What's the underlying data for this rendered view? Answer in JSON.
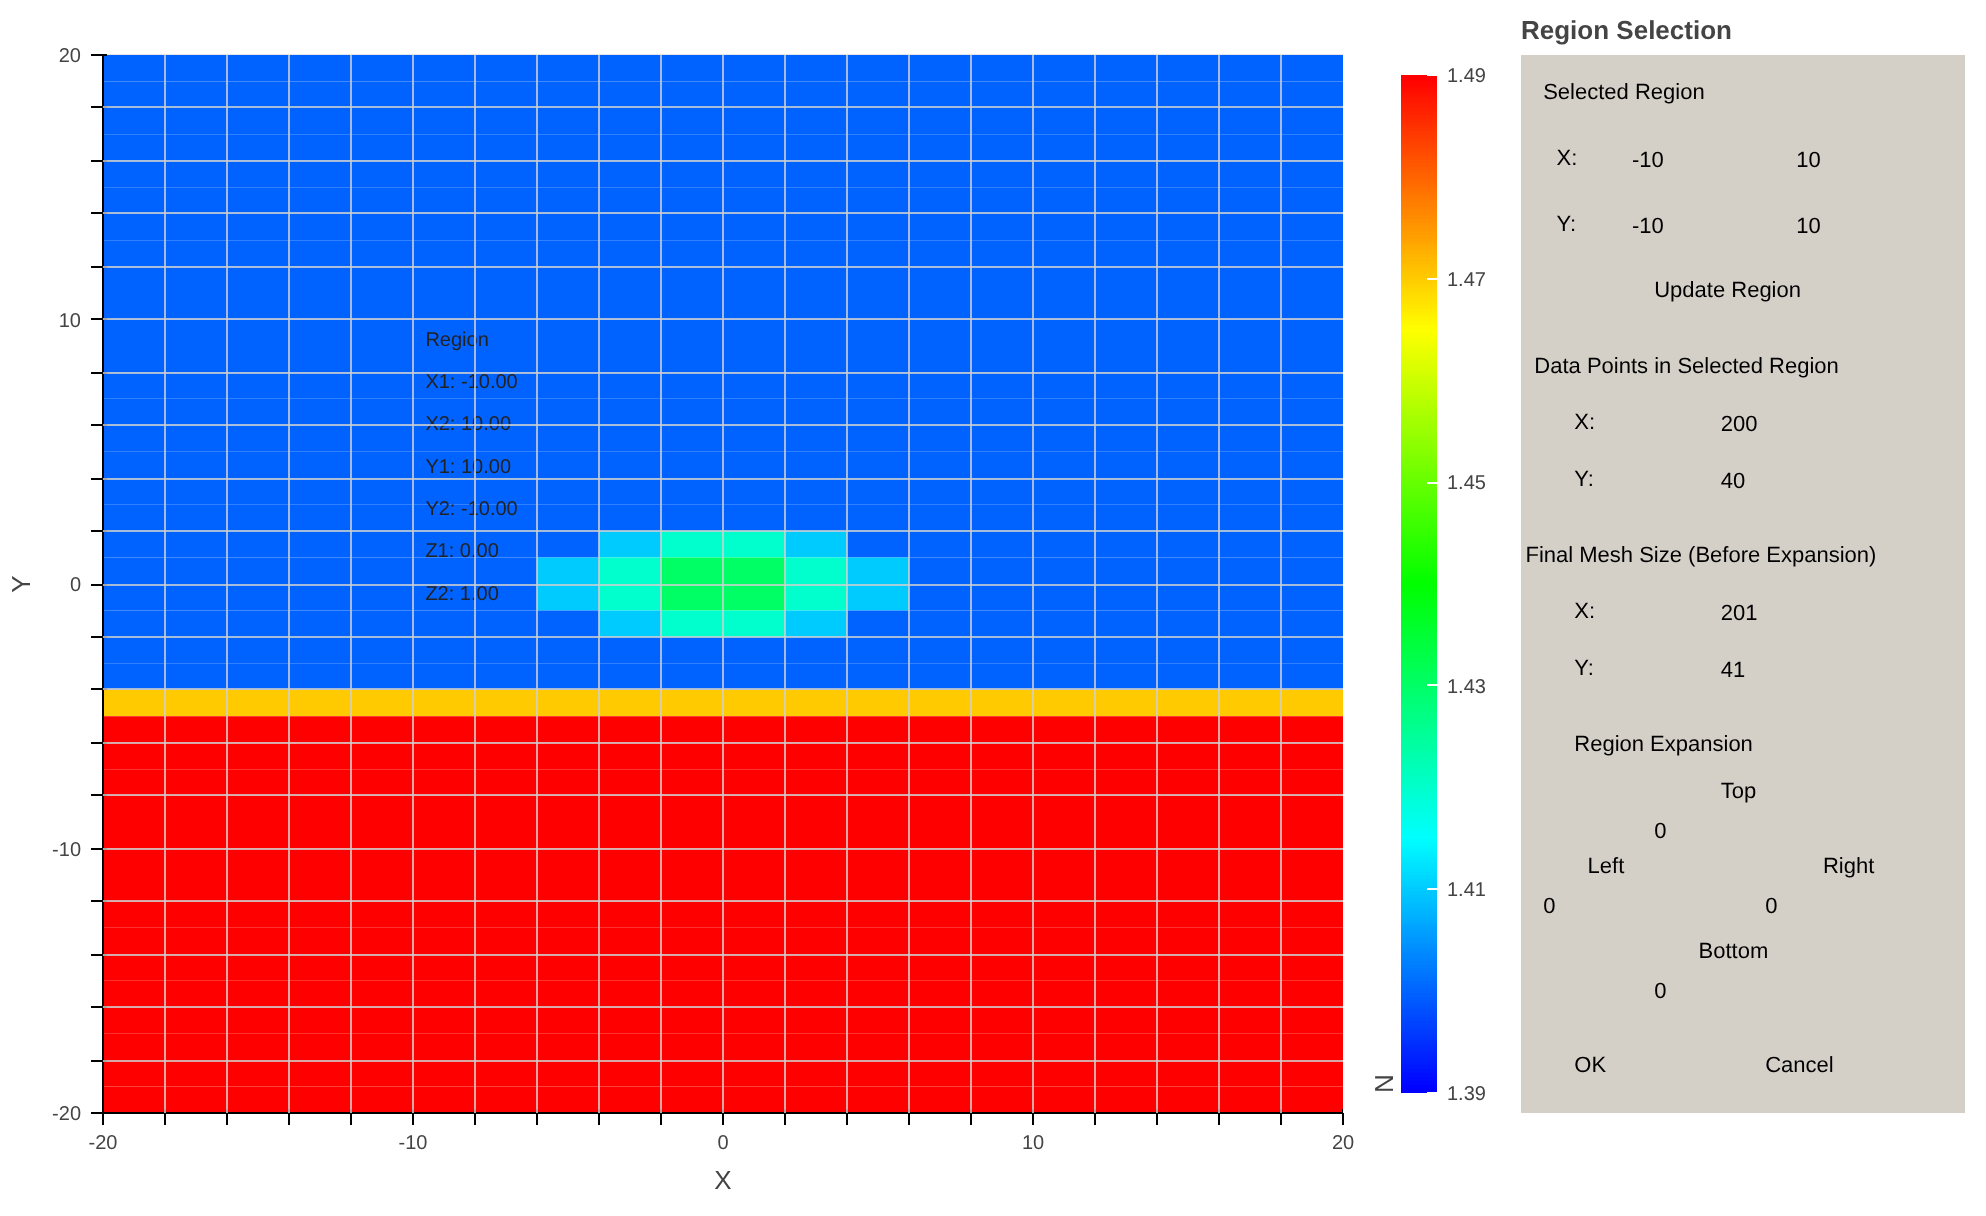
{
  "chart_data": [
    {
      "type": "heatmap",
      "title": "Region Selection",
      "xlabel": "X",
      "ylabel": "Y",
      "clabel": "N",
      "x": [
        -19,
        -17,
        -15,
        -13,
        -11,
        -9,
        -7,
        -5,
        -3,
        -1,
        1,
        3,
        5,
        7,
        9,
        11,
        13,
        15,
        17,
        19
      ],
      "y": [
        19.5,
        18.5,
        17.5,
        16.5,
        15.5,
        14.5,
        13.5,
        12.5,
        11.5,
        10.5,
        9.5,
        8.5,
        7.5,
        6.5,
        5.5,
        4.5,
        3.5,
        2.5,
        1.5,
        0.5,
        -0.5,
        -1.5,
        -2.5,
        -3.5,
        -4.5,
        -5.5,
        -6.5,
        -7.5,
        -8.5,
        -9.5,
        -10.5,
        -11.5,
        -12.5,
        -13.5,
        -14.5,
        -15.5,
        -16.5,
        -17.5,
        -18.5,
        -19.5
      ],
      "cells": [
        [
          1.4,
          1.4,
          1.4,
          1.4,
          1.4,
          1.4,
          1.4,
          1.4,
          1.4,
          1.4,
          1.4,
          1.4,
          1.4,
          1.4,
          1.4,
          1.4,
          1.4,
          1.4,
          1.4,
          1.4
        ],
        [
          1.4,
          1.4,
          1.4,
          1.4,
          1.4,
          1.4,
          1.4,
          1.4,
          1.4,
          1.4,
          1.4,
          1.4,
          1.4,
          1.4,
          1.4,
          1.4,
          1.4,
          1.4,
          1.4,
          1.4
        ],
        [
          1.4,
          1.4,
          1.4,
          1.4,
          1.4,
          1.4,
          1.4,
          1.4,
          1.4,
          1.4,
          1.4,
          1.4,
          1.4,
          1.4,
          1.4,
          1.4,
          1.4,
          1.4,
          1.4,
          1.4
        ],
        [
          1.4,
          1.4,
          1.4,
          1.4,
          1.4,
          1.4,
          1.4,
          1.4,
          1.4,
          1.4,
          1.4,
          1.4,
          1.4,
          1.4,
          1.4,
          1.4,
          1.4,
          1.4,
          1.4,
          1.4
        ],
        [
          1.4,
          1.4,
          1.4,
          1.4,
          1.4,
          1.4,
          1.4,
          1.4,
          1.4,
          1.4,
          1.4,
          1.4,
          1.4,
          1.4,
          1.4,
          1.4,
          1.4,
          1.4,
          1.4,
          1.4
        ],
        [
          1.4,
          1.4,
          1.4,
          1.4,
          1.4,
          1.4,
          1.4,
          1.4,
          1.4,
          1.4,
          1.4,
          1.4,
          1.4,
          1.4,
          1.4,
          1.4,
          1.4,
          1.4,
          1.4,
          1.4
        ],
        [
          1.4,
          1.4,
          1.4,
          1.4,
          1.4,
          1.4,
          1.4,
          1.4,
          1.4,
          1.4,
          1.4,
          1.4,
          1.4,
          1.4,
          1.4,
          1.4,
          1.4,
          1.4,
          1.4,
          1.4
        ],
        [
          1.4,
          1.4,
          1.4,
          1.4,
          1.4,
          1.4,
          1.4,
          1.4,
          1.4,
          1.4,
          1.4,
          1.4,
          1.4,
          1.4,
          1.4,
          1.4,
          1.4,
          1.4,
          1.4,
          1.4
        ],
        [
          1.4,
          1.4,
          1.4,
          1.4,
          1.4,
          1.4,
          1.4,
          1.4,
          1.4,
          1.4,
          1.4,
          1.4,
          1.4,
          1.4,
          1.4,
          1.4,
          1.4,
          1.4,
          1.4,
          1.4
        ],
        [
          1.4,
          1.4,
          1.4,
          1.4,
          1.4,
          1.4,
          1.4,
          1.4,
          1.4,
          1.4,
          1.4,
          1.4,
          1.4,
          1.4,
          1.4,
          1.4,
          1.4,
          1.4,
          1.4,
          1.4
        ],
        [
          1.4,
          1.4,
          1.4,
          1.4,
          1.4,
          1.4,
          1.4,
          1.4,
          1.4,
          1.4,
          1.4,
          1.4,
          1.4,
          1.4,
          1.4,
          1.4,
          1.4,
          1.4,
          1.4,
          1.4
        ],
        [
          1.4,
          1.4,
          1.4,
          1.4,
          1.4,
          1.4,
          1.4,
          1.4,
          1.4,
          1.4,
          1.4,
          1.4,
          1.4,
          1.4,
          1.4,
          1.4,
          1.4,
          1.4,
          1.4,
          1.4
        ],
        [
          1.4,
          1.4,
          1.4,
          1.4,
          1.4,
          1.4,
          1.4,
          1.4,
          1.4,
          1.4,
          1.4,
          1.4,
          1.4,
          1.4,
          1.4,
          1.4,
          1.4,
          1.4,
          1.4,
          1.4
        ],
        [
          1.4,
          1.4,
          1.4,
          1.4,
          1.4,
          1.4,
          1.4,
          1.4,
          1.4,
          1.4,
          1.4,
          1.4,
          1.4,
          1.4,
          1.4,
          1.4,
          1.4,
          1.4,
          1.4,
          1.4
        ],
        [
          1.4,
          1.4,
          1.4,
          1.4,
          1.4,
          1.4,
          1.4,
          1.4,
          1.4,
          1.4,
          1.4,
          1.4,
          1.4,
          1.4,
          1.4,
          1.4,
          1.4,
          1.4,
          1.4,
          1.4
        ],
        [
          1.4,
          1.4,
          1.4,
          1.4,
          1.4,
          1.4,
          1.4,
          1.4,
          1.4,
          1.4,
          1.4,
          1.4,
          1.4,
          1.4,
          1.4,
          1.4,
          1.4,
          1.4,
          1.4,
          1.4
        ],
        [
          1.4,
          1.4,
          1.4,
          1.4,
          1.4,
          1.4,
          1.4,
          1.4,
          1.4,
          1.4,
          1.4,
          1.4,
          1.4,
          1.4,
          1.4,
          1.4,
          1.4,
          1.4,
          1.4,
          1.4
        ],
        [
          1.4,
          1.4,
          1.4,
          1.4,
          1.4,
          1.4,
          1.4,
          1.4,
          1.4,
          1.4,
          1.4,
          1.4,
          1.4,
          1.4,
          1.4,
          1.4,
          1.4,
          1.4,
          1.4,
          1.4
        ],
        [
          1.4,
          1.4,
          1.4,
          1.4,
          1.4,
          1.4,
          1.4,
          1.4,
          1.41,
          1.42,
          1.42,
          1.41,
          1.4,
          1.4,
          1.4,
          1.4,
          1.4,
          1.4,
          1.4,
          1.4
        ],
        [
          1.4,
          1.4,
          1.4,
          1.4,
          1.4,
          1.4,
          1.4,
          1.41,
          1.42,
          1.43,
          1.43,
          1.42,
          1.41,
          1.4,
          1.4,
          1.4,
          1.4,
          1.4,
          1.4,
          1.4
        ],
        [
          1.4,
          1.4,
          1.4,
          1.4,
          1.4,
          1.4,
          1.4,
          1.41,
          1.42,
          1.43,
          1.43,
          1.42,
          1.41,
          1.4,
          1.4,
          1.4,
          1.4,
          1.4,
          1.4,
          1.4
        ],
        [
          1.4,
          1.4,
          1.4,
          1.4,
          1.4,
          1.4,
          1.4,
          1.4,
          1.41,
          1.42,
          1.42,
          1.41,
          1.4,
          1.4,
          1.4,
          1.4,
          1.4,
          1.4,
          1.4,
          1.4
        ],
        [
          1.4,
          1.4,
          1.4,
          1.4,
          1.4,
          1.4,
          1.4,
          1.4,
          1.4,
          1.4,
          1.4,
          1.4,
          1.4,
          1.4,
          1.4,
          1.4,
          1.4,
          1.4,
          1.4,
          1.4
        ],
        [
          1.4,
          1.4,
          1.4,
          1.4,
          1.4,
          1.4,
          1.4,
          1.4,
          1.4,
          1.4,
          1.4,
          1.4,
          1.4,
          1.4,
          1.4,
          1.4,
          1.4,
          1.4,
          1.4,
          1.4
        ],
        [
          1.47,
          1.47,
          1.47,
          1.47,
          1.47,
          1.47,
          1.47,
          1.47,
          1.47,
          1.47,
          1.47,
          1.47,
          1.47,
          1.47,
          1.47,
          1.47,
          1.47,
          1.47,
          1.47,
          1.47
        ],
        [
          1.49,
          1.49,
          1.49,
          1.49,
          1.49,
          1.49,
          1.49,
          1.49,
          1.49,
          1.49,
          1.49,
          1.49,
          1.49,
          1.49,
          1.49,
          1.49,
          1.49,
          1.49,
          1.49,
          1.49
        ],
        [
          1.49,
          1.49,
          1.49,
          1.49,
          1.49,
          1.49,
          1.49,
          1.49,
          1.49,
          1.49,
          1.49,
          1.49,
          1.49,
          1.49,
          1.49,
          1.49,
          1.49,
          1.49,
          1.49,
          1.49
        ],
        [
          1.49,
          1.49,
          1.49,
          1.49,
          1.49,
          1.49,
          1.49,
          1.49,
          1.49,
          1.49,
          1.49,
          1.49,
          1.49,
          1.49,
          1.49,
          1.49,
          1.49,
          1.49,
          1.49,
          1.49
        ],
        [
          1.49,
          1.49,
          1.49,
          1.49,
          1.49,
          1.49,
          1.49,
          1.49,
          1.49,
          1.49,
          1.49,
          1.49,
          1.49,
          1.49,
          1.49,
          1.49,
          1.49,
          1.49,
          1.49,
          1.49
        ],
        [
          1.49,
          1.49,
          1.49,
          1.49,
          1.49,
          1.49,
          1.49,
          1.49,
          1.49,
          1.49,
          1.49,
          1.49,
          1.49,
          1.49,
          1.49,
          1.49,
          1.49,
          1.49,
          1.49,
          1.49
        ],
        [
          1.49,
          1.49,
          1.49,
          1.49,
          1.49,
          1.49,
          1.49,
          1.49,
          1.49,
          1.49,
          1.49,
          1.49,
          1.49,
          1.49,
          1.49,
          1.49,
          1.49,
          1.49,
          1.49,
          1.49
        ],
        [
          1.49,
          1.49,
          1.49,
          1.49,
          1.49,
          1.49,
          1.49,
          1.49,
          1.49,
          1.49,
          1.49,
          1.49,
          1.49,
          1.49,
          1.49,
          1.49,
          1.49,
          1.49,
          1.49,
          1.49
        ],
        [
          1.49,
          1.49,
          1.49,
          1.49,
          1.49,
          1.49,
          1.49,
          1.49,
          1.49,
          1.49,
          1.49,
          1.49,
          1.49,
          1.49,
          1.49,
          1.49,
          1.49,
          1.49,
          1.49,
          1.49
        ],
        [
          1.49,
          1.49,
          1.49,
          1.49,
          1.49,
          1.49,
          1.49,
          1.49,
          1.49,
          1.49,
          1.49,
          1.49,
          1.49,
          1.49,
          1.49,
          1.49,
          1.49,
          1.49,
          1.49,
          1.49
        ],
        [
          1.49,
          1.49,
          1.49,
          1.49,
          1.49,
          1.49,
          1.49,
          1.49,
          1.49,
          1.49,
          1.49,
          1.49,
          1.49,
          1.49,
          1.49,
          1.49,
          1.49,
          1.49,
          1.49,
          1.49
        ],
        [
          1.49,
          1.49,
          1.49,
          1.49,
          1.49,
          1.49,
          1.49,
          1.49,
          1.49,
          1.49,
          1.49,
          1.49,
          1.49,
          1.49,
          1.49,
          1.49,
          1.49,
          1.49,
          1.49,
          1.49
        ],
        [
          1.49,
          1.49,
          1.49,
          1.49,
          1.49,
          1.49,
          1.49,
          1.49,
          1.49,
          1.49,
          1.49,
          1.49,
          1.49,
          1.49,
          1.49,
          1.49,
          1.49,
          1.49,
          1.49,
          1.49
        ],
        [
          1.49,
          1.49,
          1.49,
          1.49,
          1.49,
          1.49,
          1.49,
          1.49,
          1.49,
          1.49,
          1.49,
          1.49,
          1.49,
          1.49,
          1.49,
          1.49,
          1.49,
          1.49,
          1.49,
          1.49
        ],
        [
          1.49,
          1.49,
          1.49,
          1.49,
          1.49,
          1.49,
          1.49,
          1.49,
          1.49,
          1.49,
          1.49,
          1.49,
          1.49,
          1.49,
          1.49,
          1.49,
          1.49,
          1.49,
          1.49,
          1.49
        ],
        [
          1.49,
          1.49,
          1.49,
          1.49,
          1.49,
          1.49,
          1.49,
          1.49,
          1.49,
          1.49,
          1.49,
          1.49,
          1.49,
          1.49,
          1.49,
          1.49,
          1.49,
          1.49,
          1.49,
          1.49
        ]
      ],
      "xlim": [
        -20,
        20
      ],
      "ylim": [
        -20,
        20
      ],
      "xticks": [
        -20,
        {
          "value": -18,
          "label": null
        },
        {
          "value": -16,
          "label": null
        },
        {
          "value": -14,
          "label": null
        },
        {
          "value": -12,
          "label": null
        },
        -10,
        {
          "value": -8,
          "label": null
        },
        {
          "value": -6,
          "label": null
        },
        {
          "value": -4,
          "label": null
        },
        {
          "value": -2,
          "label": null
        },
        0,
        {
          "value": 2,
          "label": null
        },
        {
          "value": 4,
          "label": null
        },
        {
          "value": 6,
          "label": null
        },
        {
          "value": 8,
          "label": null
        },
        10,
        {
          "value": 12,
          "label": null
        },
        {
          "value": 14,
          "label": null
        },
        {
          "value": 16,
          "label": null
        },
        {
          "value": 18,
          "label": null
        },
        20
      ],
      "yticks": [
        -20,
        {
          "value": -18,
          "label": null
        },
        {
          "value": -16,
          "label": null
        },
        {
          "value": -14,
          "label": null
        },
        {
          "value": -12,
          "label": null
        },
        -10,
        {
          "value": -8,
          "label": null
        },
        {
          "value": -6,
          "label": null
        },
        {
          "value": -4,
          "label": null
        },
        {
          "value": -2,
          "label": null
        },
        0,
        {
          "value": 2,
          "label": null
        },
        {
          "value": 4,
          "label": null
        },
        {
          "value": 6,
          "label": null
        },
        {
          "value": 8,
          "label": null
        },
        10,
        {
          "value": 12,
          "label": null
        },
        {
          "value": 14,
          "label": null
        },
        {
          "value": 16,
          "label": null
        },
        {
          "value": 18,
          "label": null
        },
        20
      ],
      "clim": [
        1.39,
        1.49
      ],
      "cticks": [
        1.39,
        1.41,
        1.43,
        1.45,
        1.47,
        1.49
      ],
      "grid": true,
      "annotations": [
        "Region",
        "X1: -10.00",
        "X2: 10.00",
        "Y1: 10.00",
        "Y2: -10.00",
        "Z1: 0.00",
        "Z2: 1.00",
        "Selected Region",
        "X:",
        "-10",
        "10",
        "Y:",
        "-10",
        "10",
        "Update Region",
        "Data Points in Selected Region",
        "X:",
        "200",
        "Y:",
        "40",
        "Final Mesh Size (Before Expansion)",
        "X:",
        "201",
        "Y:",
        "41",
        "Region Expansion",
        "Top",
        "0",
        "Left",
        "Right",
        "0",
        "0",
        "Bottom",
        "0",
        "OK",
        "Cancel"
      ]
    }
  ]
}
